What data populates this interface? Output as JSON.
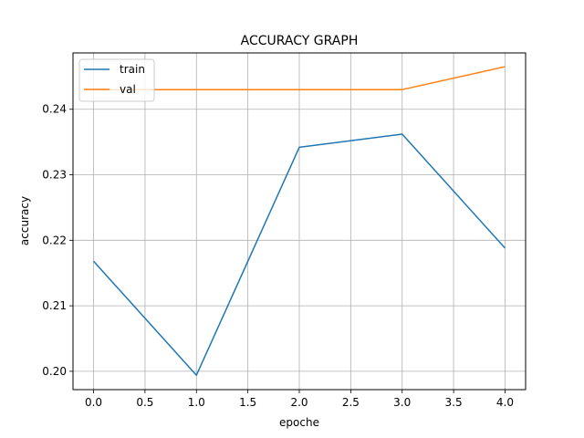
{
  "chart_data": {
    "type": "line",
    "title": "ACCURACY GRAPH",
    "xlabel": "epoche",
    "ylabel": "accuracy",
    "x": [
      0,
      1,
      2,
      3,
      4
    ],
    "xlim": [
      -0.2,
      4.2
    ],
    "ylim": [
      0.1972,
      0.2486
    ],
    "xticks": [
      0.0,
      0.5,
      1.0,
      1.5,
      2.0,
      2.5,
      3.0,
      3.5,
      4.0
    ],
    "xtick_labels": [
      "0.0",
      "0.5",
      "1.0",
      "1.5",
      "2.0",
      "2.5",
      "3.0",
      "3.5",
      "4.0"
    ],
    "yticks": [
      0.2,
      0.21,
      0.22,
      0.23,
      0.24
    ],
    "ytick_labels": [
      "0.20",
      "0.21",
      "0.22",
      "0.23",
      "0.24"
    ],
    "grid": true,
    "legend_position": "top-left",
    "series": [
      {
        "name": "train",
        "color": "#1f77b4",
        "values": [
          0.2168,
          0.1994,
          0.2342,
          0.2362,
          0.2188
        ]
      },
      {
        "name": "val",
        "color": "#ff7f0e",
        "values": [
          0.243,
          0.243,
          0.243,
          0.243,
          0.2465
        ]
      }
    ]
  }
}
